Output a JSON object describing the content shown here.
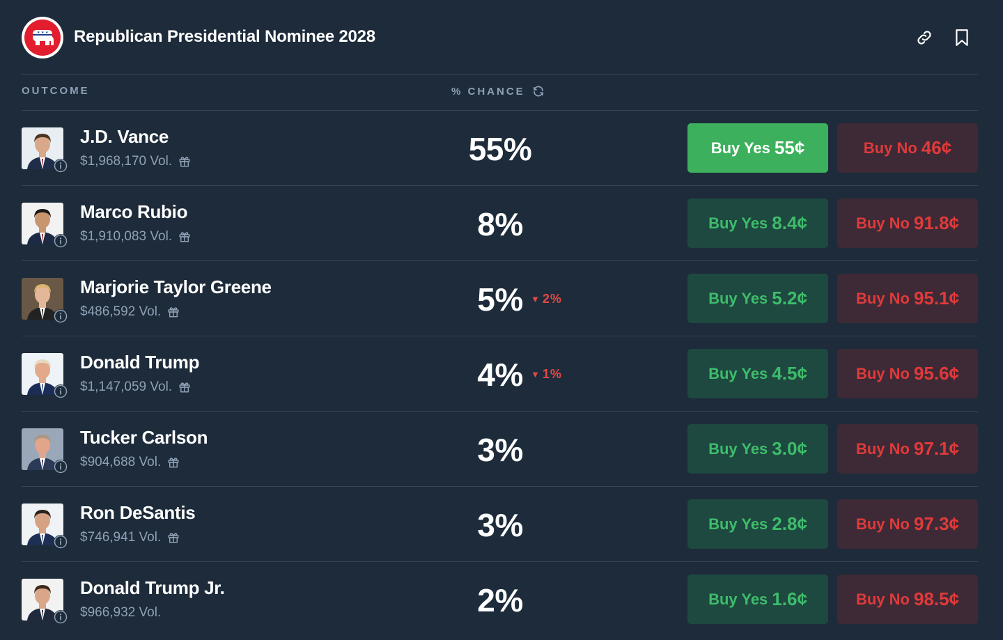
{
  "header": {
    "title": "Republican Presidential Nominee 2028",
    "logo_icon": "republican-elephant-icon",
    "actions": [
      "link-icon",
      "bookmark-icon"
    ]
  },
  "columns": {
    "outcome": "OUTCOME",
    "chance": "% CHANCE"
  },
  "colors": {
    "background": "#1d2b3a",
    "yes_active_bg": "#3cb05c",
    "yes_bg": "#1e4940",
    "yes_text": "#3ebc6b",
    "no_bg": "#3e2a36",
    "no_text": "#e03a3a",
    "change_down": "#e64848"
  },
  "outcomes": [
    {
      "name": "J.D. Vance",
      "volume": "$1,968,170 Vol.",
      "has_gift": true,
      "chance": "55%",
      "change": "",
      "yes_label": "Buy Yes",
      "yes_price": "55¢",
      "no_label": "Buy No",
      "no_price": "46¢",
      "yes_active": true
    },
    {
      "name": "Marco Rubio",
      "volume": "$1,910,083 Vol.",
      "has_gift": true,
      "chance": "8%",
      "change": "",
      "yes_label": "Buy Yes",
      "yes_price": "8.4¢",
      "no_label": "Buy No",
      "no_price": "91.8¢",
      "yes_active": false
    },
    {
      "name": "Marjorie Taylor Greene",
      "volume": "$486,592 Vol.",
      "has_gift": true,
      "chance": "5%",
      "change": "2%",
      "yes_label": "Buy Yes",
      "yes_price": "5.2¢",
      "no_label": "Buy No",
      "no_price": "95.1¢",
      "yes_active": false
    },
    {
      "name": "Donald Trump",
      "volume": "$1,147,059 Vol.",
      "has_gift": true,
      "chance": "4%",
      "change": "1%",
      "yes_label": "Buy Yes",
      "yes_price": "4.5¢",
      "no_label": "Buy No",
      "no_price": "95.6¢",
      "yes_active": false
    },
    {
      "name": "Tucker Carlson",
      "volume": "$904,688 Vol.",
      "has_gift": true,
      "chance": "3%",
      "change": "",
      "yes_label": "Buy Yes",
      "yes_price": "3.0¢",
      "no_label": "Buy No",
      "no_price": "97.1¢",
      "yes_active": false
    },
    {
      "name": "Ron DeSantis",
      "volume": "$746,941 Vol.",
      "has_gift": true,
      "chance": "3%",
      "change": "",
      "yes_label": "Buy Yes",
      "yes_price": "2.8¢",
      "no_label": "Buy No",
      "no_price": "97.3¢",
      "yes_active": false
    },
    {
      "name": "Donald Trump Jr.",
      "volume": "$966,932 Vol.",
      "has_gift": false,
      "chance": "2%",
      "change": "",
      "yes_label": "Buy Yes",
      "yes_price": "1.6¢",
      "no_label": "Buy No",
      "no_price": "98.5¢",
      "yes_active": false
    }
  ]
}
